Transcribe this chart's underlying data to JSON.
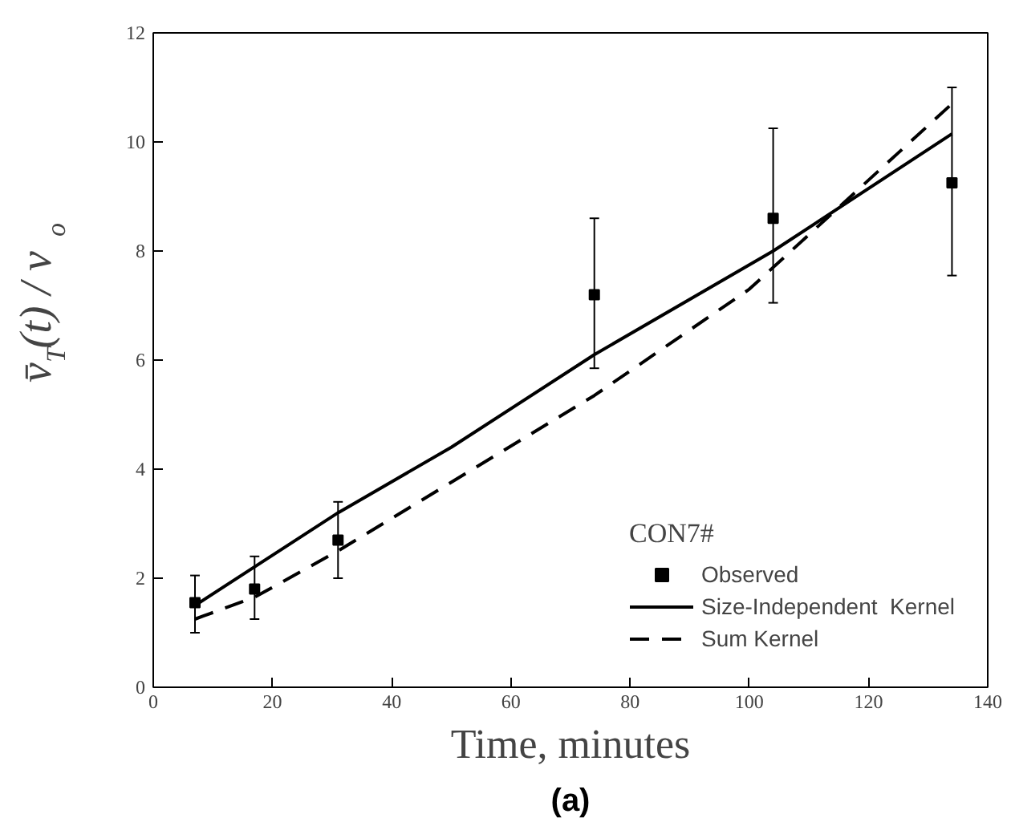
{
  "chart_data": {
    "type": "scatter",
    "xlabel": "Time, minutes",
    "ylabel": "v̄$_{T}$(t) / v$_{o}$",
    "legend_title": "CON7#",
    "annotations": [
      "(a)"
    ],
    "xlim": [
      0,
      140
    ],
    "xticks": [
      0,
      20,
      40,
      60,
      80,
      100,
      120,
      140
    ],
    "ylim": [
      0,
      12
    ],
    "yticks": [
      0,
      2,
      4,
      6,
      8,
      10,
      12
    ],
    "grid": false,
    "legend": "bottom right",
    "series": [
      {
        "name": "Observed",
        "type": "scatter",
        "marker": "square",
        "color": "#000000",
        "x": [
          7,
          17,
          31,
          74,
          104,
          134
        ],
        "values": [
          1.55,
          1.8,
          2.7,
          7.2,
          8.6,
          9.25
        ],
        "errors": [
          [
            1.0,
            2.05
          ],
          [
            1.25,
            2.4
          ],
          [
            2.0,
            3.4
          ],
          [
            5.85,
            8.6
          ],
          [
            7.05,
            10.25
          ],
          [
            7.55,
            11.0
          ]
        ]
      },
      {
        "name": "Size-Independent  Kernel",
        "type": "line",
        "line_style": "solid",
        "color": "#000000",
        "x": [
          7,
          31,
          50,
          74,
          104,
          134
        ],
        "values": [
          1.5,
          3.2,
          4.4,
          6.1,
          8.0,
          10.15
        ]
      },
      {
        "name": "Sum Kernel",
        "type": "line",
        "line_style": "dashed",
        "color": "#000000",
        "x": [
          7,
          17,
          31,
          74,
          100,
          118,
          134
        ],
        "values": [
          1.25,
          1.65,
          2.5,
          5.35,
          7.3,
          9.1,
          10.7
        ]
      }
    ]
  }
}
